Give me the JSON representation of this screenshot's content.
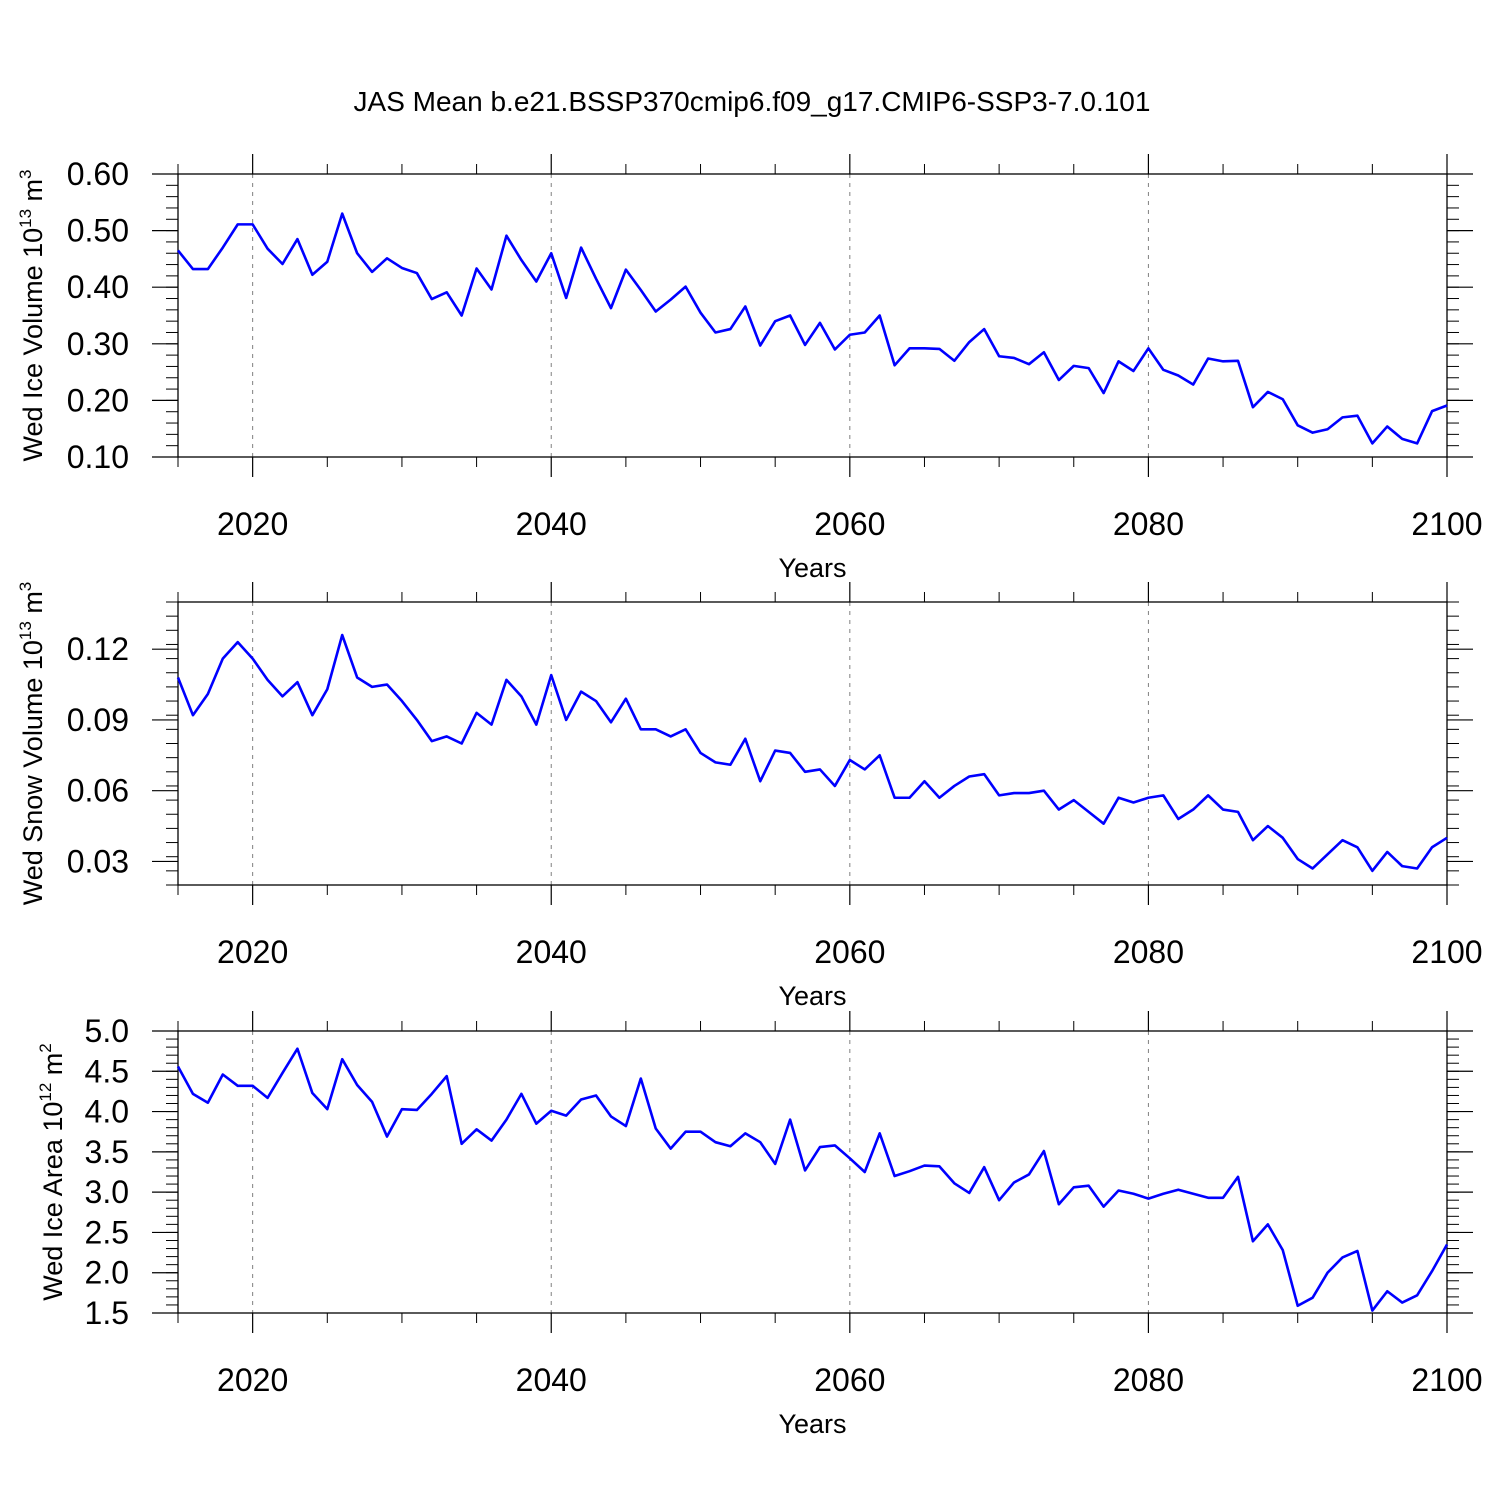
{
  "title": "JAS Mean b.e21.BSSP370cmip6.f09_g17.CMIP6-SSP3-7.0.101",
  "colors": {
    "line": "#0000ff",
    "axis": "#000000",
    "grid": "#808080"
  },
  "chart_data": [
    {
      "type": "line",
      "xlabel": "Years",
      "ylabel": {
        "prefix": "Wed Ice Volume 10",
        "exp": "13",
        "unit": " m",
        "unit_exp": "3"
      },
      "xlim": [
        2015,
        2100
      ],
      "ylim": [
        0.1,
        0.6
      ],
      "xticks": [
        2020,
        2040,
        2060,
        2080,
        2100
      ],
      "xtick_labels": [
        "2020",
        "2040",
        "2060",
        "2080",
        "2100"
      ],
      "yticks": [
        0.1,
        0.2,
        0.3,
        0.4,
        0.5,
        0.6
      ],
      "ytick_labels": [
        "0.10",
        "0.20",
        "0.30",
        "0.40",
        "0.50",
        "0.60"
      ],
      "grid": "vertical dashed at major x ticks",
      "series": [
        {
          "x_start": 2015,
          "values": [
            0.465,
            0.432,
            0.432,
            0.47,
            0.511,
            0.511,
            0.468,
            0.441,
            0.485,
            0.422,
            0.445,
            0.53,
            0.46,
            0.427,
            0.451,
            0.434,
            0.425,
            0.379,
            0.391,
            0.35,
            0.433,
            0.396,
            0.491,
            0.448,
            0.41,
            0.46,
            0.381,
            0.47,
            0.415,
            0.363,
            0.431,
            0.395,
            0.357,
            0.378,
            0.401,
            0.355,
            0.32,
            0.326,
            0.366,
            0.297,
            0.34,
            0.35,
            0.298,
            0.337,
            0.29,
            0.316,
            0.32,
            0.35,
            0.262,
            0.292,
            0.292,
            0.291,
            0.27,
            0.303,
            0.326,
            0.278,
            0.275,
            0.264,
            0.285,
            0.236,
            0.261,
            0.257,
            0.213,
            0.269,
            0.252,
            0.292,
            0.254,
            0.244,
            0.228,
            0.274,
            0.269,
            0.27,
            0.188,
            0.215,
            0.202,
            0.156,
            0.143,
            0.149,
            0.17,
            0.173,
            0.124,
            0.154,
            0.132,
            0.124,
            0.181,
            0.191
          ]
        }
      ]
    },
    {
      "type": "line",
      "xlabel": "Years",
      "ylabel": {
        "prefix": "Wed Snow Volume 10",
        "exp": "13",
        "unit": " m",
        "unit_exp": "3"
      },
      "xlim": [
        2015,
        2100
      ],
      "ylim": [
        0.02,
        0.14
      ],
      "xticks": [
        2020,
        2040,
        2060,
        2080,
        2100
      ],
      "xtick_labels": [
        "2020",
        "2040",
        "2060",
        "2080",
        "2100"
      ],
      "yticks": [
        0.03,
        0.06,
        0.09,
        0.12
      ],
      "ytick_labels": [
        "0.03",
        "0.06",
        "0.09",
        "0.12"
      ],
      "grid": "vertical dashed at major x ticks",
      "series": [
        {
          "x_start": 2015,
          "values": [
            0.108,
            0.092,
            0.101,
            0.116,
            0.123,
            0.116,
            0.107,
            0.1,
            0.106,
            0.092,
            0.103,
            0.126,
            0.108,
            0.104,
            0.105,
            0.098,
            0.09,
            0.081,
            0.083,
            0.08,
            0.093,
            0.088,
            0.107,
            0.1,
            0.088,
            0.109,
            0.09,
            0.102,
            0.098,
            0.089,
            0.099,
            0.086,
            0.086,
            0.083,
            0.086,
            0.076,
            0.072,
            0.071,
            0.082,
            0.064,
            0.077,
            0.076,
            0.068,
            0.069,
            0.062,
            0.073,
            0.069,
            0.075,
            0.057,
            0.057,
            0.064,
            0.057,
            0.062,
            0.066,
            0.067,
            0.058,
            0.059,
            0.059,
            0.06,
            0.052,
            0.056,
            0.051,
            0.046,
            0.057,
            0.055,
            0.057,
            0.058,
            0.048,
            0.052,
            0.058,
            0.052,
            0.051,
            0.039,
            0.045,
            0.04,
            0.031,
            0.027,
            0.033,
            0.039,
            0.036,
            0.026,
            0.034,
            0.028,
            0.027,
            0.036,
            0.04
          ]
        }
      ]
    },
    {
      "type": "line",
      "xlabel": "Years",
      "ylabel": {
        "prefix": "Wed Ice Area 10",
        "exp": "12",
        "unit": " m",
        "unit_exp": "2"
      },
      "xlim": [
        2015,
        2100
      ],
      "ylim": [
        1.5,
        5.0
      ],
      "xticks": [
        2020,
        2040,
        2060,
        2080,
        2100
      ],
      "xtick_labels": [
        "2020",
        "2040",
        "2060",
        "2080",
        "2100"
      ],
      "yticks": [
        1.5,
        2.0,
        2.5,
        3.0,
        3.5,
        4.0,
        4.5,
        5.0
      ],
      "ytick_labels": [
        "1.5",
        "2.0",
        "2.5",
        "3.0",
        "3.5",
        "4.0",
        "4.5",
        "5.0"
      ],
      "grid": "vertical dashed at major x ticks",
      "series": [
        {
          "x_start": 2015,
          "values": [
            4.56,
            4.22,
            4.11,
            4.46,
            4.32,
            4.32,
            4.17,
            4.48,
            4.78,
            4.23,
            4.03,
            4.65,
            4.33,
            4.12,
            3.69,
            4.03,
            4.02,
            4.22,
            4.44,
            3.6,
            3.78,
            3.64,
            3.9,
            4.22,
            3.85,
            4.01,
            3.95,
            4.15,
            4.2,
            3.94,
            3.82,
            4.41,
            3.79,
            3.54,
            3.75,
            3.75,
            3.62,
            3.57,
            3.73,
            3.62,
            3.35,
            3.9,
            3.27,
            3.56,
            3.58,
            3.42,
            3.25,
            3.73,
            3.2,
            3.26,
            3.33,
            3.32,
            3.11,
            2.99,
            3.31,
            2.9,
            3.12,
            3.22,
            3.51,
            2.85,
            3.06,
            3.08,
            2.82,
            3.02,
            2.98,
            2.92,
            2.98,
            3.03,
            2.98,
            2.93,
            2.93,
            3.19,
            2.39,
            2.6,
            2.28,
            1.59,
            1.69,
            2.0,
            2.19,
            2.27,
            1.53,
            1.77,
            1.63,
            1.72,
            2.02,
            2.35
          ]
        }
      ]
    }
  ]
}
